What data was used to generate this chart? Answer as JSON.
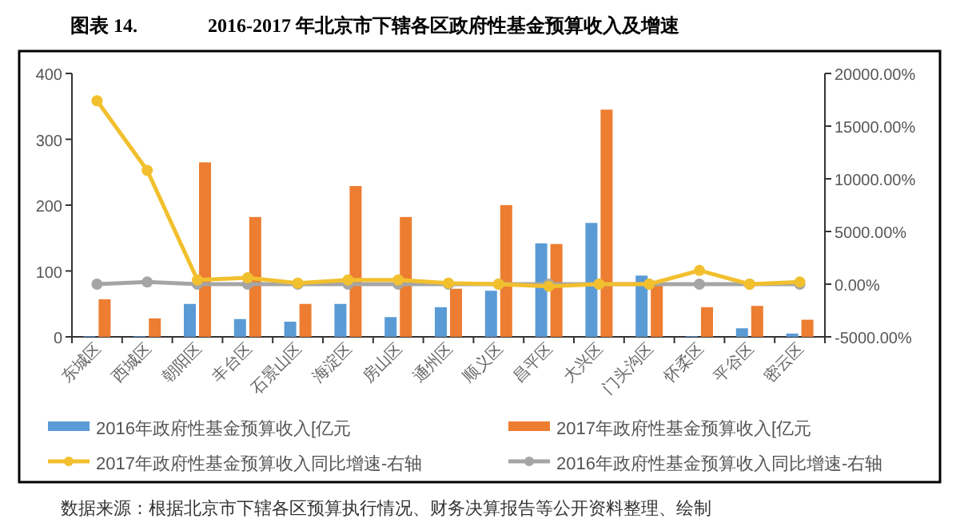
{
  "chart_data": {
    "type": "bar",
    "subtitle": "图表 14.",
    "title": "2016-2017 年北京市下辖各区政府性基金预算收入及增速",
    "categories": [
      "东城区",
      "西城区",
      "朝阳区",
      "丰台区",
      "石景山区",
      "海淀区",
      "房山区",
      "通州区",
      "顺义区",
      "昌平区",
      "大兴区",
      "门头沟区",
      "怀柔区",
      "平谷区",
      "密云区"
    ],
    "series": [
      {
        "name": "2016年政府性基金预算收入[亿元",
        "color": "#5b9bd5",
        "values": [
          1,
          1,
          50,
          27,
          23,
          50,
          30,
          45,
          70,
          142,
          173,
          93,
          1,
          13,
          5
        ]
      },
      {
        "name": "2017年政府性基金预算收入[亿元",
        "color": "#ed7d31",
        "values": [
          57,
          28,
          265,
          182,
          50,
          229,
          182,
          73,
          200,
          141,
          345,
          82,
          45,
          47,
          26
        ]
      },
      {
        "name": "2017年政府性基金预算收入同比增速-右轴",
        "type": "line",
        "axis": "y2",
        "color": "#f2c02e",
        "values": [
          17400,
          10800,
          400,
          600,
          100,
          400,
          400,
          100,
          0,
          -200,
          0,
          0,
          1300,
          0,
          200
        ]
      },
      {
        "name": "2016年政府性基金预算收入同比增速-右轴",
        "type": "line",
        "axis": "y2",
        "color": "#a5a5a5",
        "values": [
          0,
          200,
          0,
          0,
          0,
          0,
          0,
          0,
          0,
          0,
          0,
          0,
          0,
          0,
          0
        ]
      }
    ],
    "ylim": [
      0,
      400
    ],
    "yticks": [
      0,
      100,
      200,
      300,
      400
    ],
    "y2lim": [
      -5000,
      20000
    ],
    "y2ticks": [
      {
        "value": -5000,
        "label": "-5000.00%"
      },
      {
        "value": 0,
        "label": "0.00%"
      },
      {
        "value": 5000,
        "label": "5000.00%"
      },
      {
        "value": 10000,
        "label": "10000.00%"
      },
      {
        "value": 15000,
        "label": "15000.00%"
      },
      {
        "value": 20000,
        "label": "20000.00%"
      }
    ],
    "marker": "circle",
    "grid": false,
    "legend": "bottom",
    "annotations": [
      "数据来源：根据北京市下辖各区预算执行情况、财务决算报告等公开资料整理、绘制"
    ]
  }
}
